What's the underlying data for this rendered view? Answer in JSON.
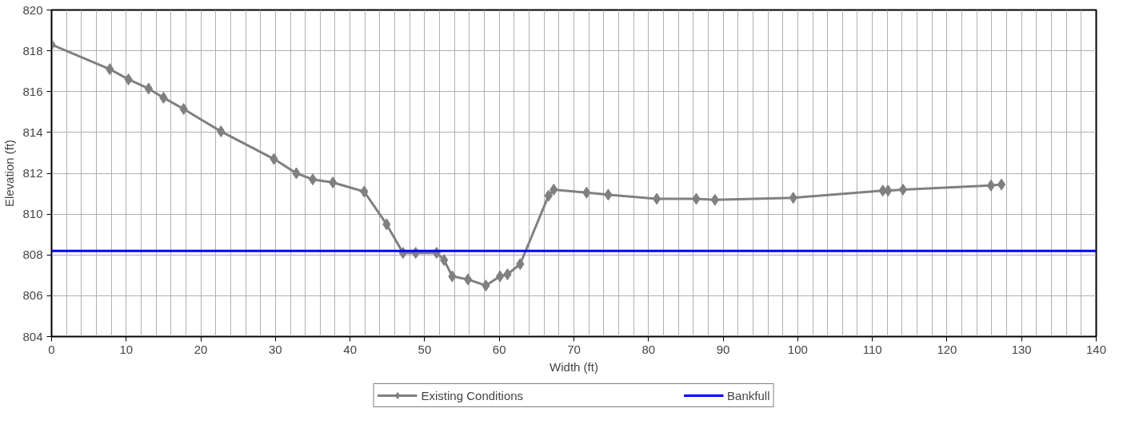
{
  "chart_data": {
    "type": "line",
    "xlabel": "Width (ft)",
    "ylabel": "Elevation (ft)",
    "xlim": [
      0,
      140
    ],
    "ylim": [
      804,
      820
    ],
    "xticks": [
      0,
      10,
      20,
      30,
      40,
      50,
      60,
      70,
      80,
      90,
      100,
      110,
      120,
      130,
      140
    ],
    "yticks": [
      804,
      806,
      808,
      810,
      812,
      814,
      816,
      818,
      820
    ],
    "grid": true,
    "legend": "bottom",
    "marker": "diamond",
    "line_style": "solid",
    "series": [
      {
        "name": "Existing Conditions",
        "color": "#808080",
        "x": [
          0,
          7.8,
          10.3,
          13,
          15,
          17.7,
          22.7,
          29.8,
          32.8,
          35,
          37.7,
          41.9,
          44.9,
          47.1,
          48.8,
          51.6,
          52.6,
          53.7,
          55.8,
          58.2,
          60.1,
          61.1,
          62.8,
          66.6,
          67.3,
          71.7,
          74.6,
          81.1,
          86.4,
          88.9,
          99.4,
          111.4,
          112.1,
          114.1,
          125.9,
          127.3
        ],
        "values": [
          818.3,
          817.1,
          816.6,
          816.15,
          815.7,
          815.15,
          814.05,
          812.7,
          812.0,
          811.7,
          811.55,
          811.1,
          809.5,
          808.1,
          808.1,
          808.1,
          807.75,
          806.95,
          806.8,
          806.5,
          806.95,
          807.05,
          807.55,
          810.9,
          811.2,
          811.05,
          810.95,
          810.75,
          810.75,
          810.7,
          810.8,
          811.15,
          811.15,
          811.2,
          811.4,
          811.45
        ]
      },
      {
        "name": "Bankfull",
        "color": "#0000ff",
        "marker": "none",
        "x": [
          0,
          140
        ],
        "values": [
          808.2,
          808.2
        ]
      }
    ]
  }
}
